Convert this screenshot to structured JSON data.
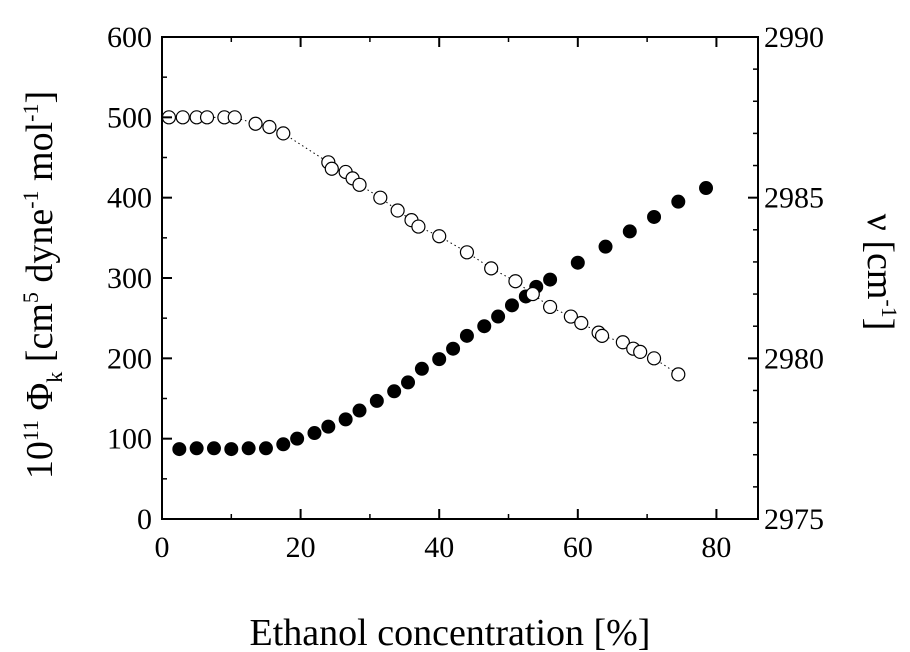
{
  "chart_data": {
    "type": "scatter",
    "x": {
      "label": "Ethanol concentration [%]",
      "range": [
        0,
        86
      ],
      "ticks": [
        0,
        20,
        40,
        60,
        80
      ]
    },
    "y_left": {
      "label": {
        "prefix": "10",
        "prefix_sup": "11",
        "symbol": "Φ",
        "symbol_sub": "k",
        "unit": "[cm",
        "unit_sup1": "5",
        "unit_mid": " dyne",
        "unit_sup2": "-1",
        "unit_mid2": " mol",
        "unit_sup3": "-1",
        "unit_end": "]"
      },
      "range": [
        0,
        600
      ],
      "ticks": [
        0,
        100,
        200,
        300,
        400,
        500,
        600
      ]
    },
    "y_right": {
      "label": {
        "symbol": "ν",
        "unit": "[cm",
        "unit_sup": "-1",
        "unit_end": "]"
      },
      "range": [
        2975,
        2990
      ],
      "ticks": [
        2975,
        2980,
        2985,
        2990
      ]
    },
    "series": [
      {
        "marker": "filled-circle",
        "axis": "left",
        "points": [
          [
            2.5,
            87
          ],
          [
            5,
            88
          ],
          [
            7.5,
            88
          ],
          [
            10,
            87
          ],
          [
            12.5,
            88
          ],
          [
            15,
            88
          ],
          [
            17.5,
            93
          ],
          [
            19.5,
            100
          ],
          [
            22,
            107
          ],
          [
            24,
            115
          ],
          [
            26.5,
            124
          ],
          [
            28.5,
            135
          ],
          [
            31,
            147
          ],
          [
            33.5,
            159
          ],
          [
            35.5,
            170
          ],
          [
            37.5,
            187
          ],
          [
            40,
            199
          ],
          [
            42,
            212
          ],
          [
            44,
            228
          ],
          [
            46.5,
            240
          ],
          [
            48.5,
            252
          ],
          [
            50.5,
            266
          ],
          [
            52.5,
            277
          ],
          [
            54,
            289
          ],
          [
            56,
            298
          ],
          [
            60,
            319
          ],
          [
            64,
            339
          ],
          [
            67.5,
            358
          ],
          [
            71,
            376
          ],
          [
            74.5,
            395
          ],
          [
            78.5,
            412
          ]
        ]
      },
      {
        "marker": "open-circle",
        "axis": "right",
        "points": [
          [
            1,
            2987.5
          ],
          [
            3,
            2987.5
          ],
          [
            5,
            2987.5
          ],
          [
            6.5,
            2987.5
          ],
          [
            9,
            2987.5
          ],
          [
            10.5,
            2987.5
          ],
          [
            13.5,
            2987.3
          ],
          [
            15.5,
            2987.2
          ],
          [
            17.5,
            2987.0
          ],
          [
            24,
            2986.1
          ],
          [
            24.5,
            2985.9
          ],
          [
            26.5,
            2985.8
          ],
          [
            27.5,
            2985.6
          ],
          [
            28.5,
            2985.4
          ],
          [
            31.5,
            2985.0
          ],
          [
            34,
            2984.6
          ],
          [
            36,
            2984.3
          ],
          [
            37,
            2984.1
          ],
          [
            40,
            2983.8
          ],
          [
            44,
            2983.3
          ],
          [
            47.5,
            2982.8
          ],
          [
            51,
            2982.4
          ],
          [
            53.5,
            2982.0
          ],
          [
            56,
            2981.6
          ],
          [
            59,
            2981.3
          ],
          [
            60.5,
            2981.1
          ],
          [
            63,
            2980.8
          ],
          [
            63.5,
            2980.7
          ],
          [
            66.5,
            2980.5
          ],
          [
            68,
            2980.3
          ],
          [
            69,
            2980.2
          ],
          [
            71,
            2980.0
          ],
          [
            74.5,
            2979.5
          ]
        ]
      }
    ]
  }
}
